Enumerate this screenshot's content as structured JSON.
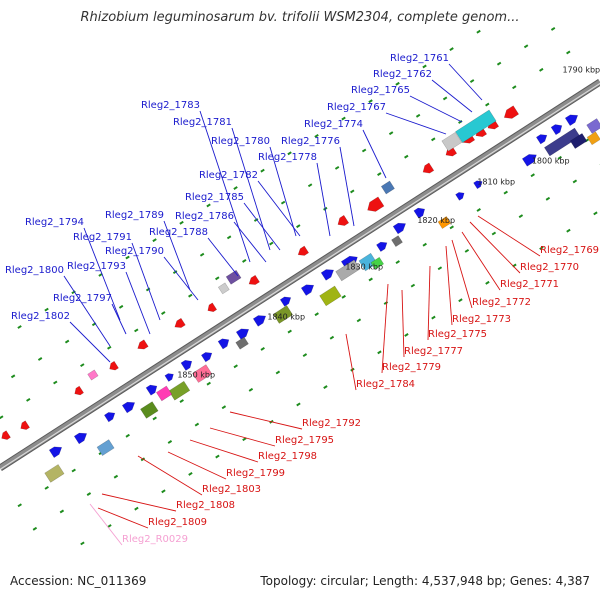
{
  "title": "Rhizobium leguminosarum bv. trifolii WSM2304, complete genom...",
  "footer": {
    "accession": "Accession: NC_011369",
    "summary": "Topology: circular; Length: 4,537,948 bp; Genes: 4,387"
  },
  "colors": {
    "forward_label": "#1a1acd",
    "reverse_label": "#d71414",
    "rna_label": "#f5a0d2",
    "backbone": "#8c8c8c",
    "tick": "#1e8c1e"
  },
  "kbp_markers": [
    "1790 kbp",
    "1800 kbp",
    "1810 kbp",
    "1820 kbp",
    "1830 kbp",
    "1840 kbp",
    "1850 kbp"
  ],
  "forward_genes": [
    "Rleg2_1761",
    "Rleg2_1762",
    "Rleg2_1765",
    "Rleg2_1767",
    "Rleg2_1774",
    "Rleg2_1776",
    "Rleg2_1778",
    "Rleg2_1780",
    "Rleg2_1781",
    "Rleg2_1783",
    "Rleg2_1782",
    "Rleg2_1785",
    "Rleg2_1786",
    "Rleg2_1788",
    "Rleg2_1789",
    "Rleg2_1790",
    "Rleg2_1791",
    "Rleg2_1793",
    "Rleg2_1794",
    "Rleg2_1797",
    "Rleg2_1800",
    "Rleg2_1802"
  ],
  "reverse_genes": [
    "Rleg2_1769",
    "Rleg2_1770",
    "Rleg2_1771",
    "Rleg2_1772",
    "Rleg2_1773",
    "Rleg2_1775",
    "Rleg2_1777",
    "Rleg2_1779",
    "Rleg2_1784",
    "Rleg2_1792",
    "Rleg2_1795",
    "Rleg2_1798",
    "Rleg2_1799",
    "Rleg2_1803",
    "Rleg2_1808",
    "Rleg2_1809"
  ],
  "rna_genes": [
    "Rleg2_R0029"
  ]
}
